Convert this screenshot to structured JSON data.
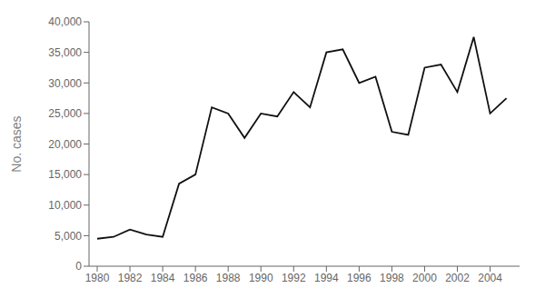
{
  "chart_data": {
    "type": "line",
    "x": [
      1980,
      1981,
      1982,
      1983,
      1984,
      1985,
      1986,
      1987,
      1988,
      1989,
      1990,
      1991,
      1992,
      1993,
      1994,
      1995,
      1996,
      1997,
      1998,
      1999,
      2000,
      2001,
      2002,
      2003,
      2004,
      2005
    ],
    "values": [
      4500,
      4800,
      6000,
      5200,
      4800,
      13500,
      15000,
      26000,
      25000,
      21000,
      25000,
      24500,
      28500,
      26000,
      35000,
      35500,
      30000,
      31000,
      22000,
      21500,
      32500,
      33000,
      28500,
      37500,
      25000,
      27500
    ],
    "color": "#111111",
    "ylabel": "No. cases",
    "xlim": [
      1979.5,
      2005.8
    ],
    "xticks": [
      1980,
      1982,
      1984,
      1986,
      1988,
      1990,
      1992,
      1994,
      1996,
      1998,
      2000,
      2002,
      2004
    ],
    "ylim": [
      0,
      40000
    ],
    "yticks": [
      0,
      {
        "value": 5000,
        "label": "5,000"
      },
      {
        "value": 10000,
        "label": "10,000"
      },
      {
        "value": 15000,
        "label": "15,000"
      },
      {
        "value": 20000,
        "label": "20,000"
      },
      {
        "value": 25000,
        "label": "25,000"
      },
      {
        "value": 30000,
        "label": "30,000"
      },
      {
        "value": 35000,
        "label": "35,000"
      },
      {
        "value": 40000,
        "label": "40,000"
      }
    ],
    "grid": false
  }
}
